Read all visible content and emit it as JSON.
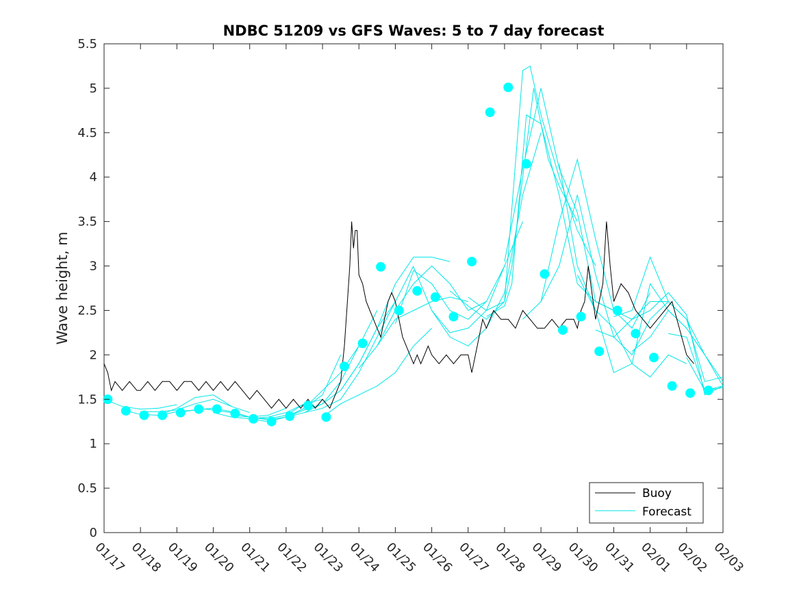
{
  "chart_data": {
    "type": "line",
    "title": "NDBC 51209 vs GFS Waves: 5 to 7 day forecast",
    "xlabel": "",
    "ylabel": "Wave height, m",
    "xlim": [
      0,
      17
    ],
    "ylim": [
      0,
      5.5
    ],
    "x_ticks": [
      0,
      1,
      2,
      3,
      4,
      5,
      6,
      7,
      8,
      9,
      10,
      11,
      12,
      13,
      14,
      15,
      16,
      17
    ],
    "x_tick_labels": [
      "01/17",
      "01/18",
      "01/19",
      "01/20",
      "01/21",
      "01/22",
      "01/23",
      "01/24",
      "01/25",
      "01/26",
      "01/27",
      "01/28",
      "01/29",
      "01/30",
      "01/31",
      "02/01",
      "02/02",
      "02/03"
    ],
    "y_ticks": [
      0,
      0.5,
      1,
      1.5,
      2,
      2.5,
      3,
      3.5,
      4,
      4.5,
      5,
      5.5
    ],
    "y_tick_labels": [
      "0",
      "0.5",
      "1",
      "1.5",
      "2",
      "2.5",
      "3",
      "3.5",
      "4",
      "4.5",
      "5",
      "5.5"
    ],
    "grid": false,
    "legend": {
      "position": "bottom-right",
      "entries": [
        "Buoy",
        "Forecast"
      ]
    },
    "colors": {
      "buoy": "#000000",
      "forecast": "#00e6e6",
      "marker": "#00ffff",
      "axis": "#262626"
    },
    "series": [
      {
        "name": "Buoy",
        "x": [
          0,
          0.1,
          0.2,
          0.3,
          0.5,
          0.7,
          0.9,
          1.0,
          1.2,
          1.4,
          1.6,
          1.8,
          2.0,
          2.2,
          2.4,
          2.6,
          2.8,
          3.0,
          3.2,
          3.4,
          3.6,
          3.8,
          4.0,
          4.2,
          4.4,
          4.6,
          4.8,
          5.0,
          5.2,
          5.4,
          5.6,
          5.8,
          6.0,
          6.2,
          6.4,
          6.5,
          6.6,
          6.7,
          6.75,
          6.8,
          6.85,
          6.9,
          6.95,
          7.0,
          7.1,
          7.2,
          7.3,
          7.4,
          7.5,
          7.6,
          7.7,
          7.8,
          7.9,
          8.0,
          8.1,
          8.2,
          8.3,
          8.4,
          8.5,
          8.6,
          8.7,
          8.8,
          8.9,
          9.0,
          9.2,
          9.4,
          9.6,
          9.8,
          10.0,
          10.1,
          10.2,
          10.3,
          10.4,
          10.5,
          10.7,
          10.9,
          11.1,
          11.3,
          11.5,
          11.7,
          11.9,
          12.1,
          12.3,
          12.5,
          12.7,
          12.9,
          13.0,
          13.1,
          13.2,
          13.3,
          13.5,
          13.6,
          13.7,
          13.8,
          13.9,
          14.0,
          14.2,
          14.4,
          14.6,
          14.8,
          15.0,
          15.2,
          15.4,
          15.6,
          15.8,
          16.0,
          16.2
        ],
        "y": [
          1.9,
          1.8,
          1.6,
          1.7,
          1.6,
          1.7,
          1.6,
          1.6,
          1.7,
          1.6,
          1.7,
          1.7,
          1.6,
          1.7,
          1.7,
          1.6,
          1.7,
          1.6,
          1.7,
          1.6,
          1.7,
          1.6,
          1.5,
          1.6,
          1.5,
          1.4,
          1.5,
          1.4,
          1.5,
          1.4,
          1.5,
          1.4,
          1.5,
          1.4,
          1.6,
          1.7,
          2.1,
          2.7,
          3.0,
          3.5,
          3.2,
          3.4,
          3.4,
          2.9,
          2.8,
          2.6,
          2.5,
          2.4,
          2.3,
          2.2,
          2.4,
          2.6,
          2.7,
          2.6,
          2.4,
          2.2,
          2.1,
          2.0,
          1.9,
          2.0,
          1.9,
          2.0,
          2.1,
          2.0,
          1.9,
          2.0,
          1.9,
          2.0,
          2.0,
          1.8,
          2.0,
          2.2,
          2.4,
          2.3,
          2.5,
          2.4,
          2.4,
          2.3,
          2.5,
          2.4,
          2.3,
          2.3,
          2.4,
          2.3,
          2.4,
          2.4,
          2.3,
          2.5,
          2.6,
          3.0,
          2.4,
          2.6,
          2.8,
          3.5,
          3.0,
          2.6,
          2.8,
          2.7,
          2.5,
          2.4,
          2.3,
          2.4,
          2.5,
          2.6,
          2.3,
          2.0,
          1.9
        ]
      },
      {
        "name": "Forecast",
        "segments": [
          {
            "x": [
              0,
              0.5,
              1,
              1.5,
              2
            ],
            "y": [
              1.5,
              1.42,
              1.39,
              1.4,
              1.44
            ]
          },
          {
            "x": [
              0.5,
              1,
              1.5,
              2,
              2.5,
              3
            ],
            "y": [
              1.38,
              1.33,
              1.32,
              1.36,
              1.38,
              1.4
            ]
          },
          {
            "x": [
              1,
              1.5,
              2,
              2.5,
              3,
              3.5
            ],
            "y": [
              1.36,
              1.36,
              1.38,
              1.45,
              1.5,
              1.42
            ]
          },
          {
            "x": [
              1.5,
              2,
              2.5,
              3,
              3.5,
              4
            ],
            "y": [
              1.32,
              1.4,
              1.52,
              1.55,
              1.42,
              1.35
            ]
          },
          {
            "x": [
              2,
              2.5,
              3,
              3.5,
              4,
              4.5,
              5
            ],
            "y": [
              1.35,
              1.38,
              1.4,
              1.36,
              1.3,
              1.32,
              1.4
            ]
          },
          {
            "x": [
              2.5,
              3,
              3.5,
              4,
              4.5,
              5,
              5.5
            ],
            "y": [
              1.4,
              1.38,
              1.35,
              1.3,
              1.28,
              1.32,
              1.45
            ]
          },
          {
            "x": [
              3,
              3.5,
              4,
              4.5,
              5,
              5.5,
              6
            ],
            "y": [
              1.35,
              1.3,
              1.28,
              1.3,
              1.35,
              1.45,
              1.5
            ]
          },
          {
            "x": [
              3.5,
              4,
              4.5,
              5,
              5.5,
              6,
              6.5
            ],
            "y": [
              1.32,
              1.3,
              1.27,
              1.3,
              1.4,
              1.55,
              2.0
            ]
          },
          {
            "x": [
              4,
              4.5,
              5,
              5.5,
              6,
              6.5,
              7
            ],
            "y": [
              1.28,
              1.25,
              1.3,
              1.4,
              1.6,
              1.8,
              2.1
            ]
          },
          {
            "x": [
              4.5,
              5,
              5.5,
              6,
              6.5,
              7,
              7.5
            ],
            "y": [
              1.25,
              1.3,
              1.38,
              1.45,
              1.7,
              2.1,
              2.5
            ]
          },
          {
            "x": [
              5,
              5.5,
              6,
              6.5,
              7,
              7.5,
              8
            ],
            "y": [
              1.3,
              1.35,
              1.45,
              1.6,
              1.9,
              2.3,
              2.6
            ]
          },
          {
            "x": [
              5.5,
              6,
              6.5,
              7,
              7.5,
              8,
              8.5
            ],
            "y": [
              1.35,
              1.4,
              1.5,
              1.8,
              2.2,
              2.6,
              3.0
            ]
          },
          {
            "x": [
              6,
              6.5,
              7,
              7.5,
              8,
              8.5,
              9
            ],
            "y": [
              1.3,
              1.45,
              1.55,
              1.65,
              1.8,
              2.1,
              2.3
            ]
          },
          {
            "x": [
              6.5,
              7,
              7.5,
              8,
              8.5,
              9,
              9.5
            ],
            "y": [
              1.6,
              1.9,
              2.3,
              2.8,
              3.1,
              3.1,
              3.05
            ]
          },
          {
            "x": [
              7,
              7.5,
              8,
              8.5,
              9,
              9.5,
              10
            ],
            "y": [
              1.85,
              2.1,
              2.4,
              2.5,
              2.6,
              2.65,
              2.6
            ]
          },
          {
            "x": [
              7.5,
              8,
              8.5,
              9,
              9.5,
              10,
              10.5
            ],
            "y": [
              2.1,
              2.5,
              2.8,
              3.0,
              2.8,
              2.5,
              2.6
            ]
          },
          {
            "x": [
              8,
              8.5,
              9,
              9.5,
              10,
              10.5,
              11
            ],
            "y": [
              2.35,
              2.95,
              2.8,
              2.5,
              2.4,
              2.6,
              3.0
            ]
          },
          {
            "x": [
              8.5,
              9,
              9.5,
              10,
              10.5,
              11,
              11.5
            ],
            "y": [
              2.99,
              2.5,
              2.25,
              2.3,
              2.5,
              3.0,
              3.5
            ]
          },
          {
            "x": [
              9,
              9.5,
              10,
              10.5,
              11,
              11.5,
              12
            ],
            "y": [
              2.5,
              2.2,
              2.1,
              2.3,
              2.7,
              3.8,
              4.5
            ]
          },
          {
            "x": [
              9.5,
              10,
              10.5,
              11,
              11.2,
              11.5,
              11.8,
              12.2,
              12.5,
              13
            ],
            "y": [
              2.72,
              2.55,
              2.4,
              2.6,
              3.0,
              4.0,
              5.0,
              4.2,
              3.9,
              3.5
            ]
          },
          {
            "x": [
              10,
              10.5,
              11,
              11.5,
              11.7,
              12,
              12.5,
              13,
              13.5
            ],
            "y": [
              2.65,
              2.5,
              2.6,
              5.2,
              5.25,
              4.7,
              4.0,
              3.4,
              3.0
            ]
          },
          {
            "x": [
              10.5,
              11,
              11.2,
              11.6,
              12,
              12.5,
              13,
              13.5,
              14
            ],
            "y": [
              2.43,
              2.55,
              2.8,
              4.7,
              4.6,
              3.8,
              2.8,
              2.6,
              2.5
            ]
          },
          {
            "x": [
              11,
              11.5,
              12,
              12.5,
              13,
              13.5,
              14,
              14.5,
              15
            ],
            "y": [
              3.05,
              4.1,
              5.0,
              4.1,
              3.6,
              2.6,
              2.5,
              2.3,
              2.7
            ]
          },
          {
            "x": [
              11.5,
              12,
              12.5,
              13,
              13.5,
              14,
              14.5,
              15
            ],
            "y": [
              2.4,
              2.6,
              3.5,
              4.2,
              3.3,
              2.5,
              2.4,
              2.5
            ]
          },
          {
            "x": [
              12,
              12.5,
              13,
              13.5,
              14,
              14.5,
              15,
              15.5
            ],
            "y": [
              2.6,
              3.0,
              3.8,
              2.9,
              2.2,
              2.0,
              2.4,
              2.6
            ]
          },
          {
            "x": [
              12.5,
              13,
              13.5,
              14,
              14.5,
              15,
              15.5,
              16
            ],
            "y": [
              4.15,
              3.0,
              2.5,
              2.3,
              1.9,
              1.75,
              2.0,
              1.9
            ]
          },
          {
            "x": [
              13,
              13.5,
              14,
              14.5,
              15,
              15.5,
              16,
              16.5
            ],
            "y": [
              2.9,
              2.5,
              1.8,
              1.9,
              2.8,
              2.5,
              2.3,
              2.0
            ]
          },
          {
            "x": [
              13.5,
              14,
              14.5,
              15,
              15.5,
              16,
              16.5,
              17
            ],
            "y": [
              2.28,
              2.2,
              2.4,
              2.6,
              2.6,
              2.4,
              1.7,
              1.75
            ]
          },
          {
            "x": [
              14,
              14.5,
              15,
              15.5,
              16,
              16.5,
              17
            ],
            "y": [
              2.43,
              2.5,
              3.1,
              2.6,
              2.4,
              2.0,
              1.7
            ]
          },
          {
            "x": [
              14.5,
              15,
              15.5,
              16,
              16.5,
              17
            ],
            "y": [
              2.04,
              2.2,
              2.5,
              2.3,
              2.0,
              1.65
            ]
          },
          {
            "x": [
              15,
              15.5,
              16,
              16.5,
              17
            ],
            "y": [
              2.5,
              2.7,
              2.45,
              1.55,
              1.65
            ]
          },
          {
            "x": [
              15.5,
              16,
              16.5,
              17
            ],
            "y": [
              2.24,
              2.2,
              1.6,
              1.63
            ]
          },
          {
            "x": [
              16,
              16.5,
              17
            ],
            "y": [
              1.97,
              1.6,
              1.65
            ]
          }
        ],
        "markers_x": [
          0.1,
          0.6,
          1.1,
          1.6,
          2.1,
          2.6,
          3.1,
          3.6,
          4.1,
          4.6,
          5.1,
          5.6,
          6.1,
          6.6,
          7.1,
          7.6,
          8.1,
          8.6,
          9.1,
          9.6,
          10.1,
          10.6,
          11.1,
          11.6,
          12.1,
          12.6,
          13.1,
          13.6,
          14.1,
          14.6,
          15.1,
          15.6,
          16.1,
          16.6
        ],
        "markers_y": [
          1.5,
          1.37,
          1.32,
          1.32,
          1.35,
          1.39,
          1.39,
          1.34,
          1.28,
          1.25,
          1.31,
          1.43,
          1.3,
          1.87,
          2.13,
          2.99,
          2.5,
          2.72,
          2.65,
          2.43,
          3.05,
          4.73,
          5.01,
          4.15,
          2.91,
          2.28,
          2.43,
          2.04,
          2.5,
          2.24,
          1.97,
          1.65,
          1.57,
          1.6
        ]
      }
    ]
  }
}
